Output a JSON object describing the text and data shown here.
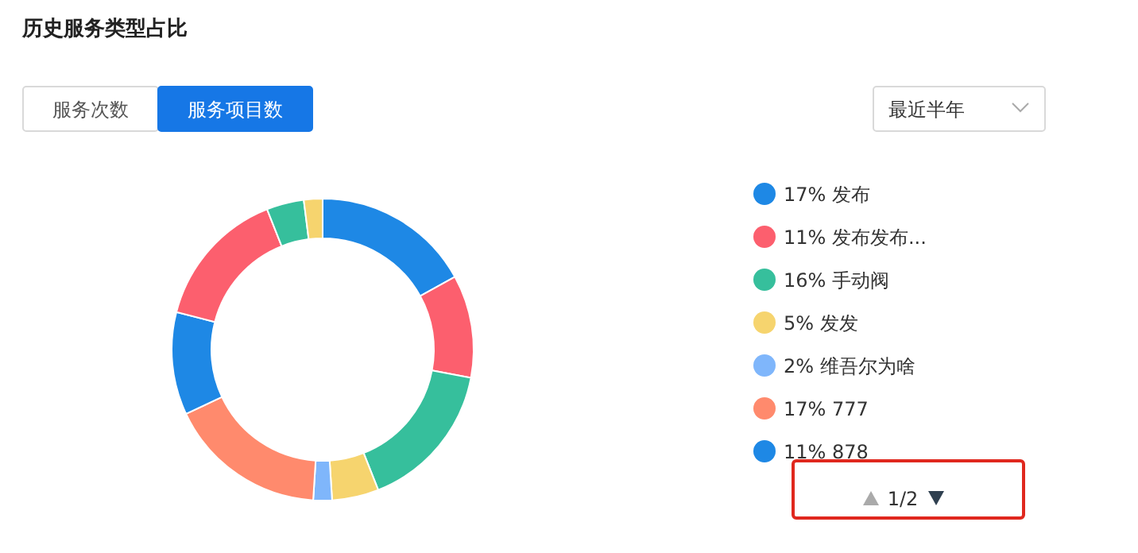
{
  "chart_data": {
    "type": "donut",
    "title": "历史服务类型占比",
    "categories": [
      "发布",
      "发布发布...",
      "手动阀",
      "发发",
      "维吾尔为啥",
      "777",
      "878",
      null,
      null,
      null
    ],
    "values": [
      17,
      11,
      16,
      5,
      2,
      17,
      11,
      15,
      4,
      2
    ],
    "colors": [
      "#1e88e5",
      "#fc5f6e",
      "#36bf9c",
      "#f6d46e",
      "#7fb6fb",
      "#ff8a6d",
      "#1e88e5",
      "#fc5f6e",
      "#36bf9c",
      "#f6d46e"
    ],
    "value_labels": [
      "17%",
      "11%",
      "16%",
      "5%",
      "2%",
      "17%",
      "11%",
      null,
      null,
      null
    ],
    "legend": "right",
    "annotations": [
      "服务次数",
      "服务项目数",
      "最近半年",
      "1/2"
    ]
  }
}
